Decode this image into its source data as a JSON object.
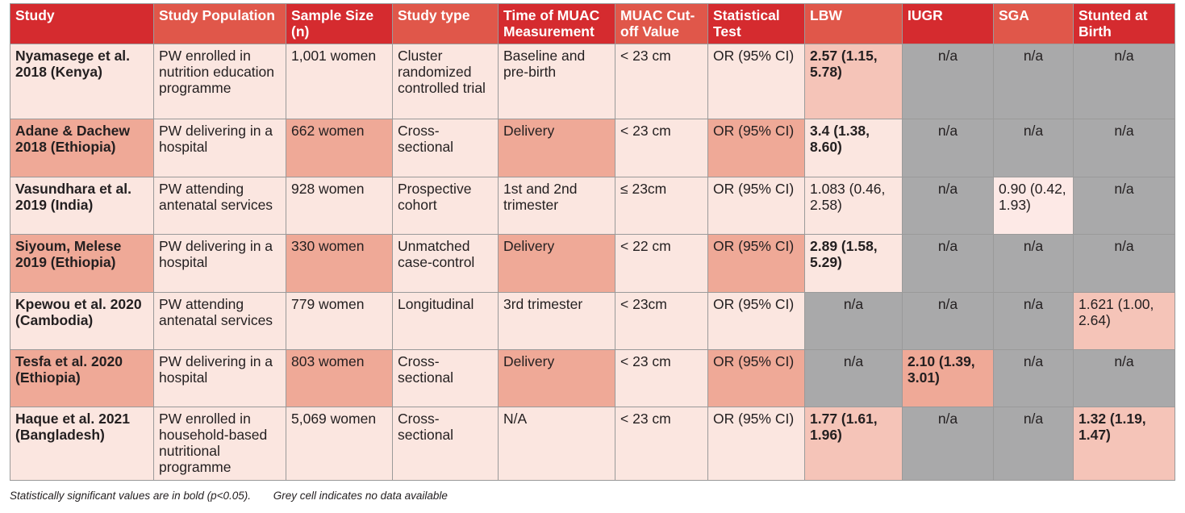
{
  "columns": [
    "Study",
    "Study Population",
    "Sample Size (n)",
    "Study type",
    "Time of MUAC Measurement",
    "MUAC Cut-off Value",
    "Statistical Test",
    "LBW",
    "IUGR",
    "SGA",
    "Stunted at Birth"
  ],
  "rows": [
    [
      "Nyamasege et al. 2018 (Kenya)",
      "PW enrolled in nutrition education programme",
      "1,001 women",
      "Cluster randomized controlled trial",
      "Baseline and pre-birth",
      "< 23 cm",
      "OR (95% CI)",
      "2.57 (1.15, 5.78)",
      "n/a",
      "n/a",
      "n/a"
    ],
    [
      "Adane & Dachew 2018 (Ethiopia)",
      "PW delivering in a hospital",
      "662 women",
      "Cross-sectional",
      "Delivery",
      "< 23 cm",
      "OR (95% CI)",
      "3.4 (1.38, 8.60)",
      "n/a",
      "n/a",
      "n/a"
    ],
    [
      "Vasundhara et al. 2019 (India)",
      "PW attending antenatal services",
      "928 women",
      "Prospective cohort",
      "1st and 2nd trimester",
      "≤ 23cm",
      "OR (95% CI)",
      "1.083 (0.46, 2.58)",
      "n/a",
      "0.90 (0.42, 1.93)",
      "n/a"
    ],
    [
      "Siyoum, Melese 2019 (Ethiopia)",
      "PW delivering in a hospital",
      "330 women",
      "Unmatched case-control",
      "Delivery",
      "< 22 cm",
      "OR (95% CI)",
      "2.89 (1.58, 5.29)",
      "n/a",
      "n/a",
      "n/a"
    ],
    [
      "Kpewou et al. 2020 (Cambodia)",
      "PW attending antenatal services",
      "779 women",
      "Longitudinal",
      "3rd trimester",
      "< 23cm",
      "OR (95% CI)",
      "n/a",
      "n/a",
      "n/a",
      "1.621 (1.00, 2.64)"
    ],
    [
      "Tesfa et al. 2020 (Ethiopia)",
      "PW delivering in a hospital",
      "803 women",
      "Cross-sectional",
      "Delivery",
      "< 23 cm",
      "OR (95% CI)",
      "n/a",
      "2.10 (1.39, 3.01)",
      "n/a",
      "n/a"
    ],
    [
      "Haque et al. 2021 (Bangladesh)",
      "PW enrolled in household-based nutritional programme",
      "5,069 women",
      "Cross-sectional",
      "N/A",
      "< 23 cm",
      "OR (95% CI)",
      "1.77 (1.61, 1.96)",
      "n/a",
      "n/a",
      "1.32 (1.19, 1.47)"
    ]
  ],
  "footnotes": {
    "significance": "Statistically significant values are in bold (p<0.05).",
    "grey": "Grey cell indicates no data available"
  },
  "colors": {
    "header_dark": "#d52b2f",
    "header_light": "#e0574a",
    "cell_light": "#fbe6e0",
    "cell_mid": "#f5c4b8",
    "cell_dark": "#efa997",
    "no_data_grey": "#a9a9aa"
  }
}
